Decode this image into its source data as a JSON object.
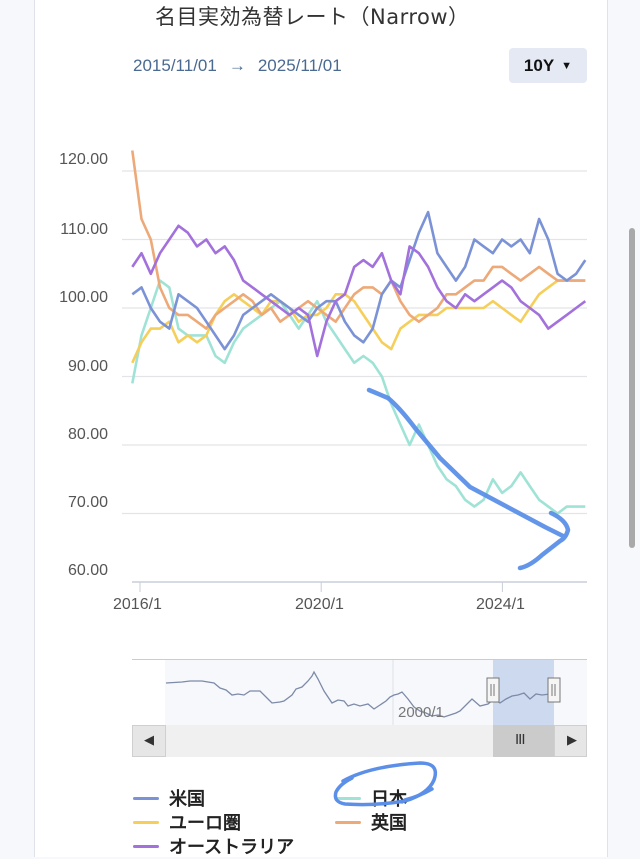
{
  "title": "名目実効為替レート（Narrow）",
  "date_range": {
    "start": "2015/11/01",
    "arrow": "→",
    "end": "2025/11/01"
  },
  "period_selector": {
    "label": "10Y",
    "caret": "▼"
  },
  "navigator": {
    "label": "2000/1",
    "left_arrow": "◀",
    "right_arrow": "▶",
    "grip": "III",
    "handle_grip": "||"
  },
  "colors": {
    "us": "#7b93d6",
    "jp": "#9fe3d6",
    "eu": "#f5cf5a",
    "uk": "#eda978",
    "au": "#a371dc",
    "annotation": "#5b8fe8"
  },
  "legend": [
    {
      "key": "us",
      "label": "米国"
    },
    {
      "key": "jp",
      "label": "日本"
    },
    {
      "key": "eu",
      "label": "ユーロ圏"
    },
    {
      "key": "uk",
      "label": "英国"
    },
    {
      "key": "au",
      "label": "オーストラリア"
    }
  ],
  "chart_data": {
    "type": "line",
    "title": "名目実効為替レート（Narrow）",
    "xlabel": "",
    "ylabel": "",
    "ylim": [
      60,
      125
    ],
    "yticks": [
      "60.00",
      "70.00",
      "80.00",
      "90.00",
      "100.00",
      "110.00",
      "120.00"
    ],
    "xticks": [
      "2016/1",
      "2020/1",
      "2024/1"
    ],
    "grid": true,
    "legend_position": "bottom",
    "x_start": 2015.83,
    "x_step_years": 0.25,
    "series": [
      {
        "key": "us",
        "name": "米国",
        "values": [
          102,
          103,
          100,
          98,
          97,
          102,
          101,
          100,
          98,
          96,
          94,
          96,
          99,
          100,
          101,
          102,
          101,
          100,
          99,
          98,
          100,
          101,
          101,
          98,
          96,
          95,
          97,
          102,
          104,
          103,
          107,
          111,
          114,
          108,
          106,
          104,
          106,
          110,
          109,
          108,
          110,
          109,
          110,
          108,
          113,
          110,
          105,
          104,
          105,
          107
        ]
      },
      {
        "key": "jp",
        "name": "日本",
        "values": [
          89,
          96,
          100,
          104,
          103,
          97,
          96,
          96,
          96,
          93,
          92,
          95,
          97,
          98,
          99,
          100,
          101,
          99,
          97,
          99,
          101,
          98,
          96,
          94,
          92,
          93,
          92,
          90,
          86,
          83,
          80,
          83,
          80,
          77,
          75,
          74,
          72,
          71,
          72,
          75,
          73,
          74,
          76,
          74,
          72,
          71,
          70,
          71,
          71,
          71
        ]
      },
      {
        "key": "eu",
        "name": "ユーロ圏",
        "values": [
          92,
          95,
          97,
          97,
          98,
          95,
          96,
          95,
          96,
          99,
          101,
          102,
          101,
          100,
          99,
          101,
          101,
          100,
          98,
          99,
          99,
          100,
          102,
          102,
          101,
          99,
          97,
          95,
          94,
          97,
          98,
          99,
          99,
          99,
          100,
          100,
          100,
          100,
          100,
          101,
          100,
          99,
          98,
          100,
          102,
          103,
          104,
          104,
          104,
          104
        ]
      },
      {
        "key": "uk",
        "name": "英国",
        "values": [
          123,
          113,
          110,
          103,
          100,
          99,
          99,
          98,
          97,
          99,
          100,
          101,
          102,
          101,
          99,
          100,
          98,
          99,
          100,
          101,
          100,
          99,
          98,
          100,
          102,
          103,
          103,
          102,
          104,
          101,
          99,
          98,
          99,
          100,
          102,
          102,
          103,
          104,
          104,
          106,
          106,
          105,
          104,
          105,
          106,
          105,
          104,
          104,
          104,
          104
        ]
      },
      {
        "key": "au",
        "name": "オーストラリア",
        "values": [
          106,
          108,
          105,
          108,
          110,
          112,
          111,
          109,
          110,
          108,
          109,
          107,
          104,
          103,
          102,
          101,
          100,
          99,
          100,
          99,
          93,
          98,
          101,
          102,
          106,
          107,
          106,
          108,
          104,
          102,
          109,
          108,
          106,
          103,
          101,
          100,
          102,
          101,
          102,
          103,
          104,
          103,
          101,
          100,
          99,
          97,
          98,
          99,
          100,
          101
        ]
      }
    ]
  },
  "annotation": {
    "description": "hand-drawn blue arrow trending down along 日本 line and circle around 日本 legend"
  }
}
